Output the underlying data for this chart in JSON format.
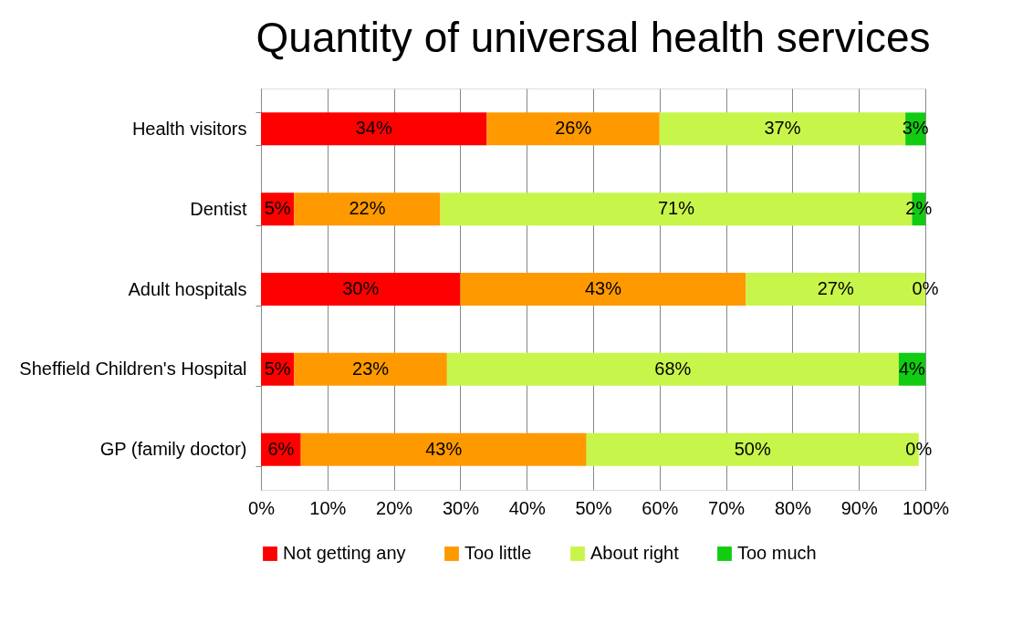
{
  "chart_data": {
    "type": "bar",
    "orientation": "horizontal",
    "stacked": true,
    "title": "Quantity of universal health services",
    "categories": [
      "Health visitors",
      "Dentist",
      "Adult hospitals",
      "Sheffield Children's Hospital",
      "GP (family doctor)"
    ],
    "series": [
      {
        "name": "Not getting any",
        "color": "#ff0000",
        "values": [
          34,
          5,
          30,
          5,
          6
        ],
        "value_labels": [
          "34%",
          "5%",
          "30%",
          "5%",
          "6%"
        ]
      },
      {
        "name": "Too little",
        "color": "#ff9900",
        "values": [
          26,
          22,
          43,
          23,
          43
        ],
        "value_labels": [
          "26%",
          "22%",
          "43%",
          "23%",
          "43%"
        ]
      },
      {
        "name": "About right",
        "color": "#c8f54a",
        "values": [
          37,
          71,
          27,
          68,
          50
        ],
        "value_labels": [
          "37%",
          "71%",
          "27%",
          "68%",
          "50%"
        ]
      },
      {
        "name": "Too much",
        "color": "#11cc11",
        "values": [
          3,
          2,
          0,
          4,
          0
        ],
        "value_labels": [
          "3%",
          "2%",
          "0%",
          "4%",
          "0%"
        ]
      }
    ],
    "xlim": [
      0,
      100
    ],
    "xticks": [
      {
        "value": 0,
        "label": "0%"
      },
      {
        "value": 10,
        "label": "10%"
      },
      {
        "value": 20,
        "label": "20%"
      },
      {
        "value": 30,
        "label": "30%"
      },
      {
        "value": 40,
        "label": "40%"
      },
      {
        "value": 50,
        "label": "50%"
      },
      {
        "value": 60,
        "label": "60%"
      },
      {
        "value": 70,
        "label": "70%"
      },
      {
        "value": 80,
        "label": "80%"
      },
      {
        "value": 90,
        "label": "90%"
      },
      {
        "value": 100,
        "label": "100%"
      }
    ],
    "grid": "x",
    "legend": "bottom"
  }
}
